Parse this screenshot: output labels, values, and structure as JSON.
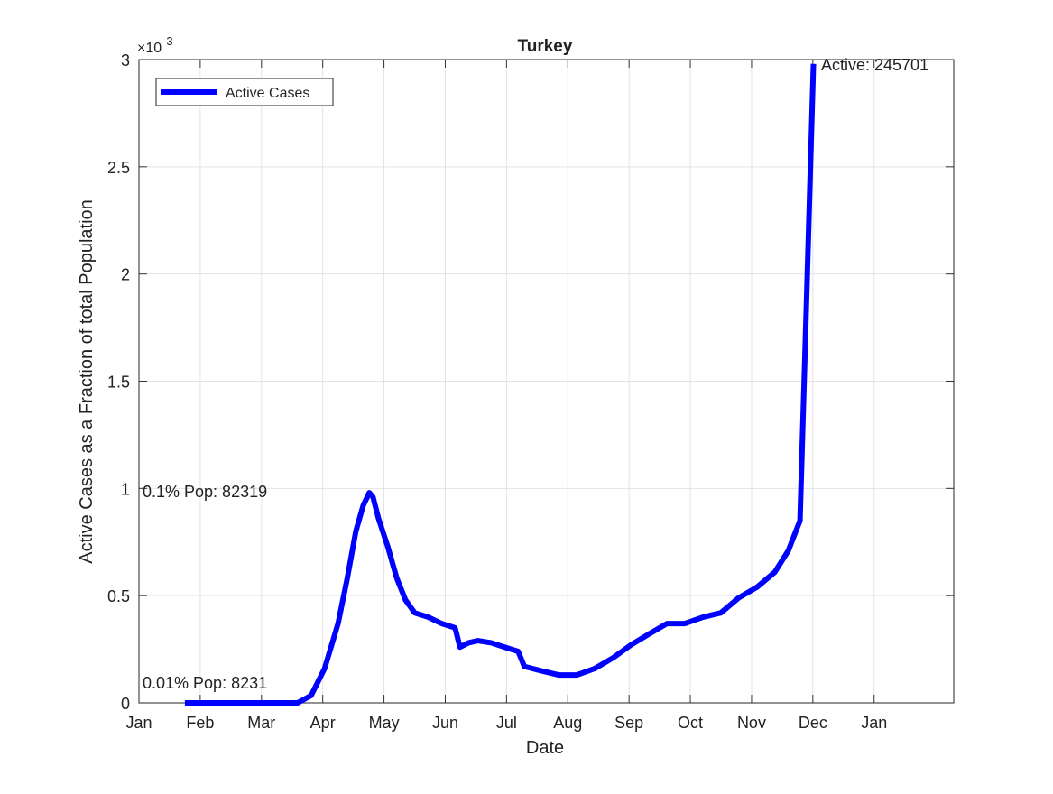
{
  "chart_data": {
    "type": "line",
    "title": "Turkey",
    "x_label": "Date",
    "y_label": "Active Cases as a Fraction of total Population",
    "y_multiplier": {
      "base": "×10",
      "power": "-3"
    },
    "xlim": [
      0,
      13.3
    ],
    "xticks": [
      {
        "value": 0,
        "label": "Jan"
      },
      {
        "value": 1,
        "label": "Feb"
      },
      {
        "value": 2,
        "label": "Mar"
      },
      {
        "value": 3,
        "label": "Apr"
      },
      {
        "value": 4,
        "label": "May"
      },
      {
        "value": 5,
        "label": "Jun"
      },
      {
        "value": 6,
        "label": "Jul"
      },
      {
        "value": 7,
        "label": "Aug"
      },
      {
        "value": 8,
        "label": "Sep"
      },
      {
        "value": 9,
        "label": "Oct"
      },
      {
        "value": 10,
        "label": "Nov"
      },
      {
        "value": 11,
        "label": "Dec"
      },
      {
        "value": 12,
        "label": "Jan"
      }
    ],
    "ylim": [
      0,
      0.003
    ],
    "yticks": [
      {
        "value": 0,
        "label": "0"
      },
      {
        "value": 0.0005,
        "label": "0.5"
      },
      {
        "value": 0.001,
        "label": "1"
      },
      {
        "value": 0.0015,
        "label": "1.5"
      },
      {
        "value": 0.002,
        "label": "2"
      },
      {
        "value": 0.0025,
        "label": "2.5"
      },
      {
        "value": 0.003,
        "label": "3"
      }
    ],
    "grid": true,
    "legend_position": "upper-left",
    "x": [
      0.75,
      2.59,
      2.81,
      3.03,
      3.25,
      3.4,
      3.54,
      3.66,
      3.76,
      3.82,
      3.91,
      4.06,
      4.21,
      4.35,
      4.5,
      4.72,
      4.94,
      5.16,
      5.24,
      5.38,
      5.53,
      5.75,
      5.97,
      6.19,
      6.29,
      6.56,
      6.85,
      7.15,
      7.44,
      7.74,
      8.03,
      8.32,
      8.62,
      8.91,
      9.21,
      9.5,
      9.79,
      10.09,
      10.38,
      10.6,
      10.79,
      10.88,
      11.01
    ],
    "series": [
      {
        "name": "Active Cases",
        "color": "#0000ff",
        "values": [
          0,
          0,
          3.4e-05,
          0.00016,
          0.00037,
          0.00058,
          0.0008,
          0.00092,
          0.00098,
          0.00096,
          0.00086,
          0.00073,
          0.00058,
          0.00048,
          0.00042,
          0.0004,
          0.00037,
          0.00035,
          0.00026,
          0.00028,
          0.00029,
          0.00028,
          0.00026,
          0.00024,
          0.00017,
          0.00015,
          0.00013,
          0.00013,
          0.00016,
          0.00021,
          0.00027,
          0.00032,
          0.00037,
          0.00037,
          0.0004,
          0.00042,
          0.00049,
          0.00054,
          0.00061,
          0.00071,
          0.00085,
          0.00171,
          0.00298
        ]
      }
    ],
    "annotations": [
      "Active: 245701",
      "0.1% Pop: 82319",
      "0.01% Pop: 8231"
    ]
  }
}
